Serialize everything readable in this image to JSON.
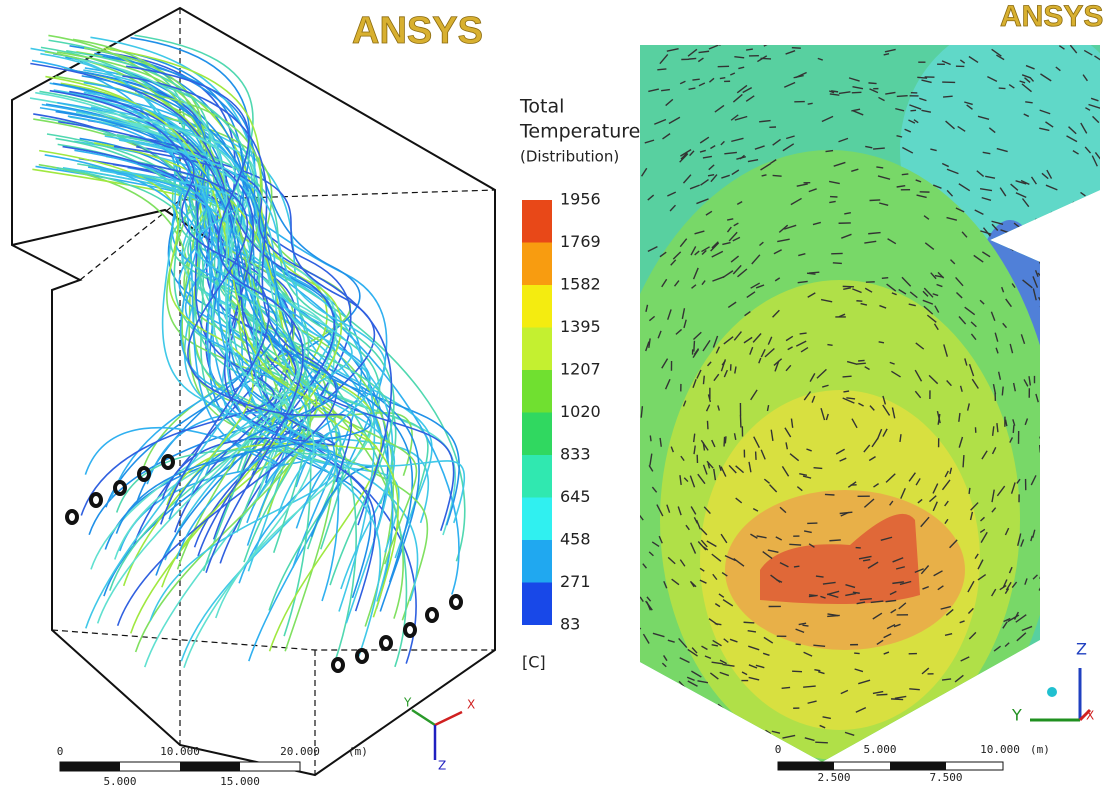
{
  "left_panel": {
    "logo": "ANSYS",
    "scale": {
      "top": [
        "0",
        "10.000",
        "20.000"
      ],
      "unit": "(m)",
      "bottom": [
        "5.000",
        "15.000"
      ]
    },
    "axes": [
      "Y",
      "X",
      "Z"
    ]
  },
  "legend": {
    "title": [
      "Total",
      "Temperature",
      "(Distribution)"
    ],
    "levels": [
      1956,
      1769,
      1582,
      1395,
      1207,
      1020,
      833,
      645,
      458,
      271,
      83
    ],
    "colors": [
      "#e84818",
      "#f89c10",
      "#f4ec10",
      "#c4f030",
      "#70e030",
      "#30d860",
      "#30e8b0",
      "#30f0f0",
      "#20a8f0",
      "#1848e8"
    ],
    "unit": "[C]"
  },
  "right_panel": {
    "logo": "ANSYS",
    "scale": {
      "top": [
        "0",
        "5.000",
        "10.000"
      ],
      "unit": "(m)",
      "bottom": [
        "2.500",
        "7.500"
      ]
    },
    "axes": [
      "Z",
      "Y",
      "X"
    ]
  }
}
